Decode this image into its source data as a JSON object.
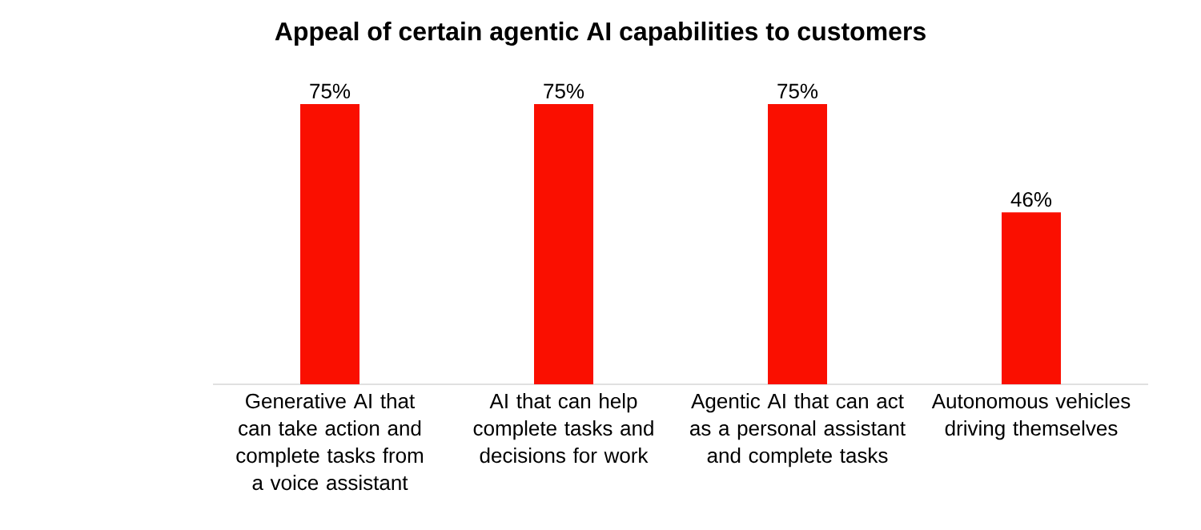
{
  "chart_data": {
    "type": "bar",
    "title": "Appeal of certain agentic AI capabilities to customers",
    "categories": [
      "Generative AI that can take action and complete tasks from a voice assistant",
      "AI that can help complete tasks and decisions for work",
      "Agentic AI that can act as a personal assistant and complete tasks",
      "Autonomous vehicles driving themselves"
    ],
    "values": [
      75,
      75,
      75,
      46
    ],
    "value_labels": [
      "75%",
      "75%",
      "75%",
      "46%"
    ],
    "color": "#fa0f00"
  }
}
